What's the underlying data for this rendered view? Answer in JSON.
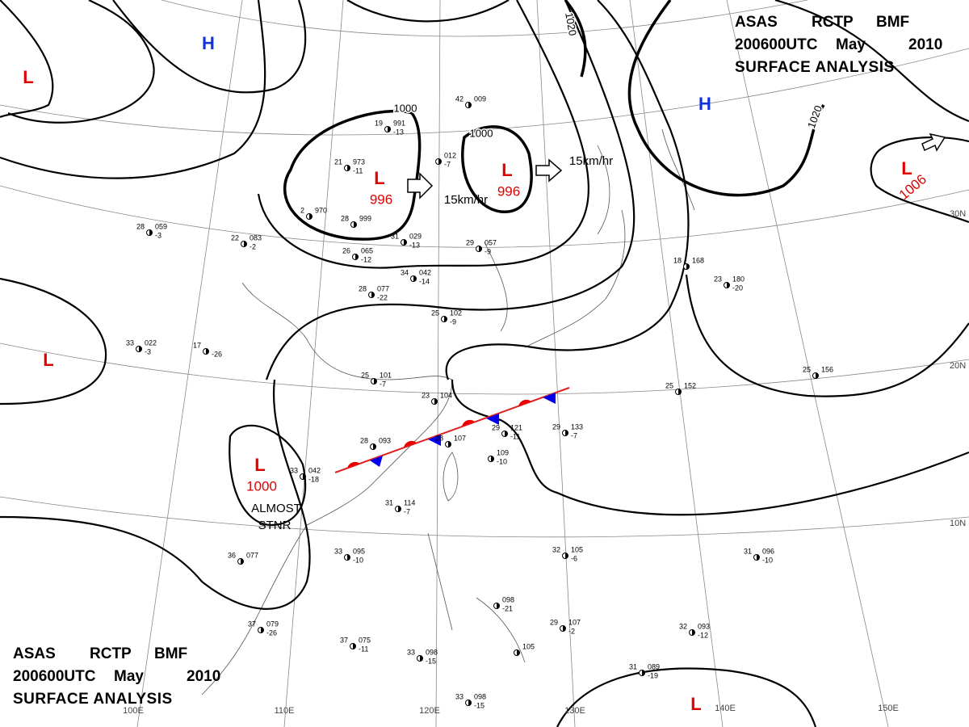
{
  "header_top": {
    "line1": [
      "ASAS",
      "RCTP",
      "BMF"
    ],
    "line2": [
      "200600UTC",
      "May",
      "2010"
    ],
    "line3": "SURFACE ANALYSIS"
  },
  "header_bottom": {
    "line1": [
      "ASAS",
      "RCTP",
      "BMF"
    ],
    "line2": [
      "200600UTC",
      "May",
      "2010"
    ],
    "line3": "SURFACE ANALYSIS"
  },
  "centers": [
    {
      "kind": "L"
    },
    {
      "kind": "H"
    },
    {
      "kind": "L",
      "value": "996"
    },
    {
      "kind": "L",
      "value": "996"
    },
    {
      "kind": "H"
    },
    {
      "kind": "L",
      "value": "1006"
    },
    {
      "kind": "L",
      "value": "1000"
    },
    {
      "kind": "L"
    },
    {
      "kind": "L"
    }
  ],
  "isobar_labels": [
    "1000",
    "1000",
    "1020",
    "1020"
  ],
  "motion_labels": [
    "15km/hr",
    "15km/hr"
  ],
  "front_note": [
    "ALMOST",
    "STNR"
  ],
  "grid_labels": [
    "100E",
    "110E",
    "120E",
    "130E",
    "140E",
    "150E",
    "30N",
    "20N",
    "10N"
  ],
  "stations": [
    {
      "temp": "28",
      "pres": "093"
    },
    {
      "temp": "25",
      "pres": "101",
      "dew": "-7"
    },
    {
      "temp": "23",
      "pres": "104"
    },
    {
      "temp": "28",
      "pres": "107"
    },
    {
      "pres": "109",
      "dew": "-10"
    },
    {
      "temp": "29",
      "pres": "121",
      "dew": "-11"
    },
    {
      "temp": "29",
      "pres": "133",
      "dew": "-7"
    },
    {
      "temp": "25",
      "pres": "152"
    },
    {
      "temp": "25",
      "pres": "156"
    },
    {
      "temp": "18",
      "pres": "168"
    },
    {
      "temp": "23",
      "pres": "180",
      "dew": "-20"
    },
    {
      "temp": "36",
      "pres": "077"
    },
    {
      "temp": "33",
      "pres": "095",
      "dew": "-10"
    },
    {
      "temp": "31",
      "pres": "114",
      "dew": "-7"
    },
    {
      "temp": "37",
      "pres": "079",
      "dew": "-26"
    },
    {
      "temp": "37",
      "pres": "075",
      "dew": "-11"
    },
    {
      "temp": "33",
      "pres": "098",
      "dew": "-15"
    },
    {
      "temp": "33",
      "pres": "098",
      "dew": "-15"
    },
    {
      "temp": "31",
      "pres": "089",
      "dew": "-19"
    },
    {
      "temp": "32",
      "pres": "093",
      "dew": "-12"
    },
    {
      "temp": "29",
      "pres": "107",
      "dew": "-2"
    },
    {
      "temp": "32",
      "pres": "105",
      "dew": "-6"
    },
    {
      "temp": "31",
      "pres": "096",
      "dew": "-10"
    },
    {
      "pres": "098",
      "dew": "-21"
    },
    {
      "pres": "105"
    },
    {
      "temp": "25",
      "pres": "102",
      "dew": "-9"
    },
    {
      "temp": "28",
      "pres": "077",
      "dew": "-22"
    },
    {
      "temp": "22",
      "pres": "083",
      "dew": "-2"
    },
    {
      "temp": "28",
      "pres": "059",
      "dew": "-3"
    },
    {
      "temp": "33",
      "pres": "022",
      "dew": "-3"
    },
    {
      "temp": "17",
      "dew": "-26"
    },
    {
      "temp": "34",
      "pres": "042",
      "dew": "-14"
    },
    {
      "temp": "29",
      "pres": "057",
      "dew": "-9"
    },
    {
      "temp": "21",
      "pres": "973",
      "dew": "-11"
    },
    {
      "temp": "28",
      "pres": "999"
    },
    {
      "temp": "2",
      "pres": "970"
    },
    {
      "temp": "26",
      "pres": "065",
      "dew": "-12"
    },
    {
      "temp": "31",
      "pres": "029",
      "dew": "-13"
    },
    {
      "temp": "19",
      "pres": "991",
      "dew": "-13"
    },
    {
      "temp": "42",
      "pres": "009"
    },
    {
      "pres": "012",
      "dew": "-7"
    },
    {
      "temp": "33",
      "pres": "042",
      "dew": "-18"
    }
  ]
}
